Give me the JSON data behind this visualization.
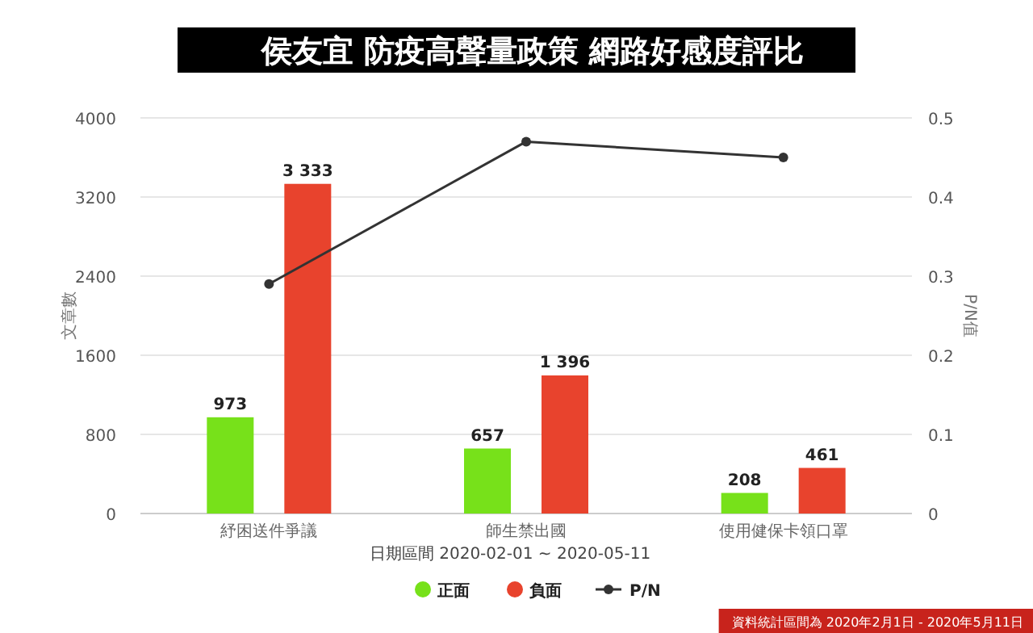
{
  "chart_data": {
    "type": "bar",
    "title": "侯友宜 防疫高聲量政策 網路好感度評比",
    "xlabel": "日期區間 2020-02-01 ~ 2020-05-11",
    "ylabel": "文章數",
    "y2label": "P/N值",
    "categories": [
      "紓困送件爭議",
      "師生禁出國",
      "使用健保卡領口罩"
    ],
    "series": [
      {
        "name": "正面",
        "color": "#77e11a",
        "values": [
          973,
          657,
          208
        ],
        "value_labels": [
          "973",
          "657",
          "208"
        ]
      },
      {
        "name": "負面",
        "color": "#e8432d",
        "values": [
          3333,
          1396,
          461
        ],
        "value_labels": [
          "3 333",
          "1 396",
          "461"
        ]
      },
      {
        "name": "P/N",
        "type": "line",
        "axis": "y2",
        "color": "#333333",
        "marker": "circle",
        "values": [
          0.29,
          0.47,
          0.45
        ]
      }
    ],
    "ylim": [
      0,
      4000
    ],
    "yticks": [
      0,
      800,
      1600,
      2400,
      3200,
      4000
    ],
    "y2lim": [
      0,
      0.5
    ],
    "y2ticks": [
      0,
      0.1,
      0.2,
      0.3,
      0.4,
      0.5
    ],
    "grid": "y",
    "legend": "bottom",
    "annotations": [
      "資料統計區間為 2020年2月1日 - 2020年5月11日"
    ]
  }
}
